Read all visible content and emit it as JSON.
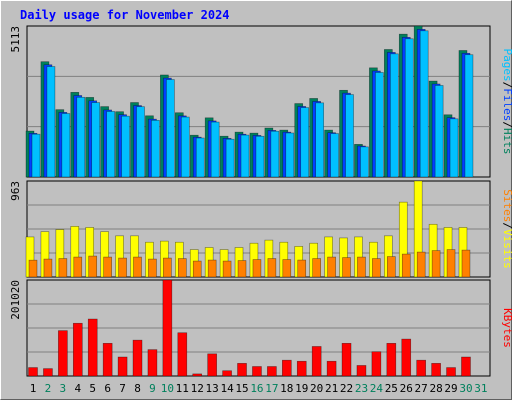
{
  "chart_data": {
    "type": "bar",
    "title": "Daily usage for November 2024",
    "categories": [
      "1",
      "2",
      "3",
      "4",
      "5",
      "6",
      "7",
      "8",
      "9",
      "10",
      "11",
      "12",
      "13",
      "14",
      "15",
      "16",
      "17",
      "18",
      "19",
      "20",
      "21",
      "22",
      "23",
      "24",
      "25",
      "26",
      "27",
      "28",
      "29",
      "30",
      "31"
    ],
    "label_colors": [
      "#000000",
      "#00805c",
      "#00805c",
      "#000000",
      "#000000",
      "#000000",
      "#000000",
      "#000000",
      "#00805c",
      "#00805c",
      "#000000",
      "#000000",
      "#000000",
      "#000000",
      "#000000",
      "#00805c",
      "#00805c",
      "#000000",
      "#000000",
      "#000000",
      "#000000",
      "#000000",
      "#00805c",
      "#00805c",
      "#000000",
      "#000000",
      "#000000",
      "#000000",
      "#000000",
      "#00805c",
      "#00805c"
    ],
    "separator": "/",
    "panels": [
      {
        "ylim": [
          0,
          5113
        ],
        "yticks": [
          5113
        ],
        "series": [
          {
            "name": "Hits",
            "color": "#00805c",
            "values": [
              1555,
              3904,
              2280,
              2867,
              2695,
              2384,
              2211,
              2522,
              2073,
              3455,
              2176,
              1416,
              2004,
              1382,
              1520,
              1486,
              1658,
              1589,
              2487,
              2660,
              1589,
              2937,
              1106,
              3697,
              4318,
              4837,
              5113,
              3248,
              2107,
              4284,
              null
            ]
          },
          {
            "name": "Files",
            "color": "#0040ff",
            "values": [
              1480,
              3800,
              2190,
              2760,
              2580,
              2270,
              2110,
              2420,
              1960,
              3350,
              2070,
              1350,
              1900,
              1310,
              1450,
              1410,
              1580,
              1520,
              2390,
              2560,
              1500,
              2840,
              1050,
              3590,
              4220,
              4730,
              5000,
              3150,
              2010,
              4190,
              null
            ]
          },
          {
            "name": "Pages",
            "color": "#00c0ff",
            "values": [
              1450,
              3740,
              2150,
              2700,
              2520,
              2220,
              2060,
              2380,
              1920,
              3300,
              2030,
              1320,
              1860,
              1280,
              1420,
              1380,
              1550,
              1490,
              2350,
              2510,
              1470,
              2790,
              1020,
              3540,
              4170,
              4680,
              4950,
              3100,
              1970,
              4140,
              null
            ]
          }
        ]
      },
      {
        "ylim": [
          0,
          963
        ],
        "yticks": [
          963
        ],
        "series": [
          {
            "name": "Visits",
            "color": "#ffff00",
            "values": [
              402,
              455,
              476,
              508,
              497,
              455,
              413,
              413,
              349,
              360,
              349,
              275,
              296,
              275,
              296,
              339,
              370,
              349,
              307,
              339,
              402,
              392,
              402,
              349,
              413,
              751,
              963,
              529,
              497,
              497,
              null
            ]
          },
          {
            "name": "Sites",
            "color": "#ff8000",
            "values": [
              169,
              180,
              185,
              200,
              210,
              200,
              190,
              200,
              180,
              190,
              185,
              160,
              170,
              160,
              165,
              175,
              185,
              175,
              170,
              185,
              200,
              195,
              200,
              185,
              205,
              230,
              250,
              265,
              275,
              270,
              null
            ]
          }
        ]
      },
      {
        "ylim": [
          0,
          201020
        ],
        "yticks": [
          201020
        ],
        "series": [
          {
            "name": "KBytes",
            "color": "#ff0000",
            "values": [
              17672,
              15463,
              94988,
              110450,
              119286,
              68479,
              39762,
              75106,
              55225,
              201020,
              90570,
              4418,
              46389,
              11045,
              26508,
              19881,
              19881,
              33135,
              30926,
              61852,
              30926,
              68479,
              22090,
              50807,
              68479,
              77315,
              33135,
              26508,
              17672,
              39762,
              null
            ]
          }
        ]
      }
    ]
  }
}
